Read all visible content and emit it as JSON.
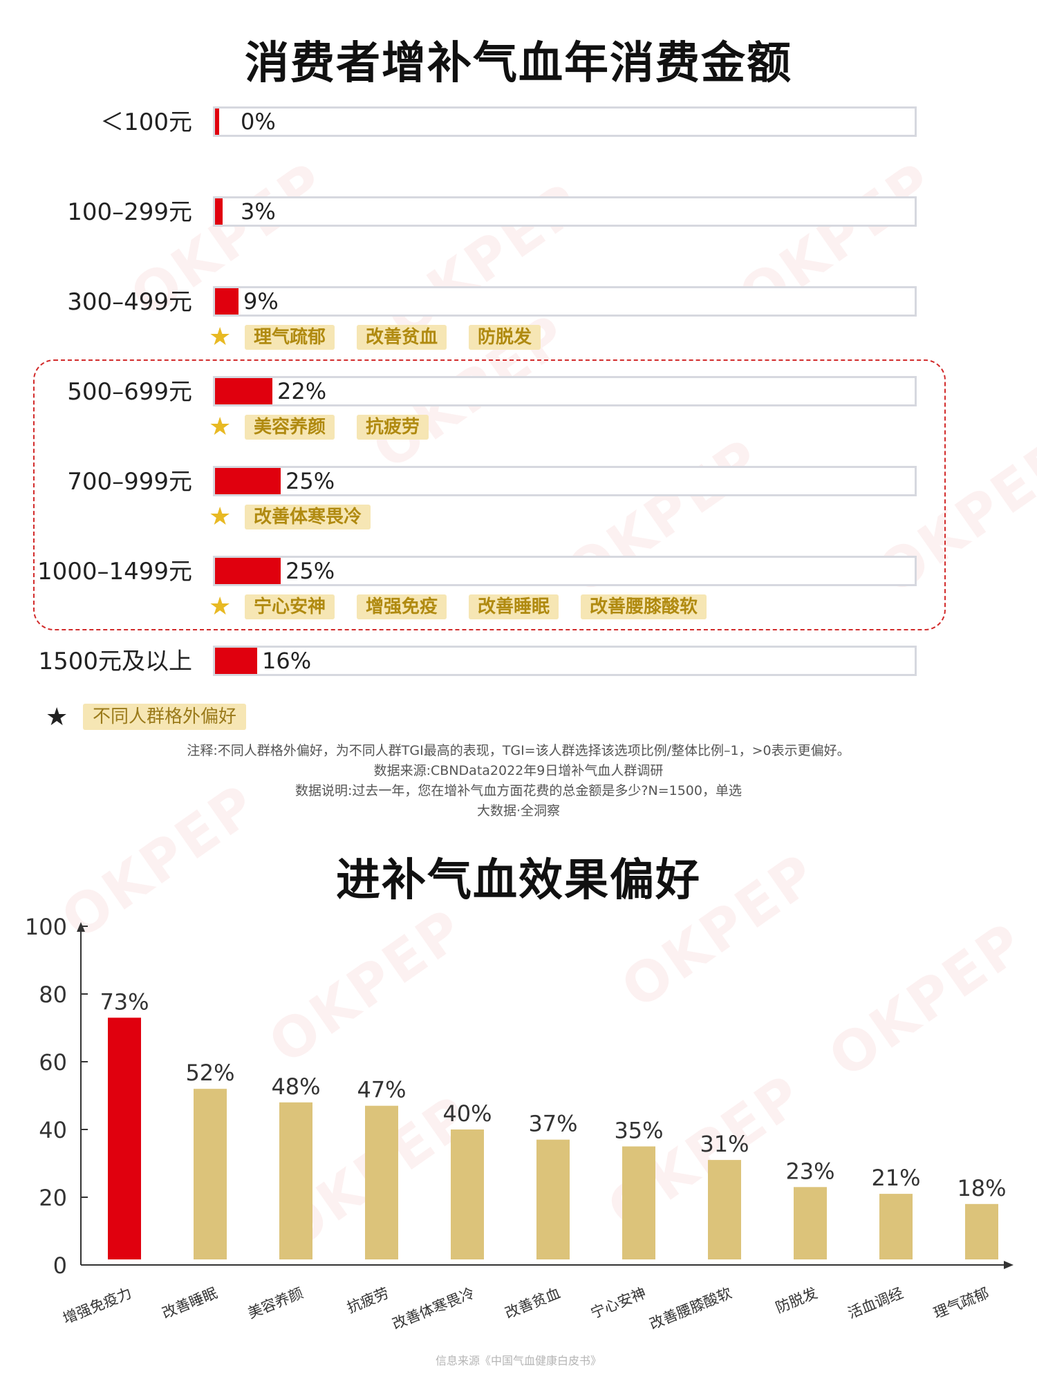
{
  "watermark": "OKPEP",
  "colors": {
    "red": "#e0000e",
    "gold": "#dcc37a",
    "tag_bg": "#f6e6b4",
    "tag_text": "#b08a10",
    "star": "#e8b923"
  },
  "icons": {
    "star": "star-icon"
  },
  "section1": {
    "title": "消费者增补气血年消费金额",
    "rows": [
      {
        "label": "＜100元",
        "value": 0,
        "pct_label": "0%",
        "tags": []
      },
      {
        "label": "100–299元",
        "value": 3,
        "pct_label": "3%",
        "tags": []
      },
      {
        "label": "300–499元",
        "value": 9,
        "pct_label": "9%",
        "tags": [
          "理气疏郁",
          "改善贫血",
          "防脱发"
        ]
      },
      {
        "label": "500–699元",
        "value": 22,
        "pct_label": "22%",
        "tags": [
          "美容养颜",
          "抗疲劳"
        ]
      },
      {
        "label": "700–999元",
        "value": 25,
        "pct_label": "25%",
        "tags": [
          "改善体寒畏冷"
        ]
      },
      {
        "label": "1000–1499元",
        "value": 25,
        "pct_label": "25%",
        "tags": [
          "宁心安神",
          "增强免疫",
          "改善睡眠",
          "改善腰膝酸软"
        ]
      },
      {
        "label": "1500元及以上",
        "value": 16,
        "pct_label": "16%",
        "tags": []
      }
    ],
    "legend": "不同人群格外偏好",
    "notes": [
      "注释:不同人群格外偏好，为不同人群TGI最高的表现，TGI=该人群选择该选项比例/整体比例–1，>0表示更偏好。",
      "数据来源:CBNData2022年9日增补气血人群调研",
      "数据说明:过去一年，您在增补气血方面花费的总金额是多少?N=1500，单选",
      "大数据·全洞察"
    ]
  },
  "section2": {
    "title": "进补气血效果偏好",
    "source": "信息来源《中国气血健康白皮书》"
  },
  "chart_data": [
    {
      "type": "bar",
      "orientation": "horizontal",
      "title": "消费者增补气血年消费金额",
      "categories": [
        "＜100元",
        "100–299元",
        "300–499元",
        "500–699元",
        "700–999元",
        "1000–1499元",
        "1500元及以上"
      ],
      "values": [
        0,
        3,
        9,
        22,
        25,
        25,
        16
      ],
      "unit": "%"
    },
    {
      "type": "bar",
      "title": "进补气血效果偏好",
      "categories": [
        "增强免疫力",
        "改善睡眠",
        "美容养颜",
        "抗疲劳",
        "改善体寒畏冷",
        "改善贫血",
        "宁心安神",
        "改善腰膝酸软",
        "防脱发",
        "活血调经",
        "理气疏郁"
      ],
      "values": [
        73,
        52,
        48,
        47,
        40,
        37,
        35,
        31,
        23,
        21,
        18
      ],
      "data_labels": [
        "73%",
        "52%",
        "48%",
        "47%",
        "40%",
        "37%",
        "35%",
        "31%",
        "23%",
        "21%",
        "18%"
      ],
      "yticks": [
        0,
        20,
        40,
        60,
        80,
        100
      ],
      "ylim": [
        0,
        100
      ],
      "highlight_index": 0,
      "grid": false
    }
  ]
}
